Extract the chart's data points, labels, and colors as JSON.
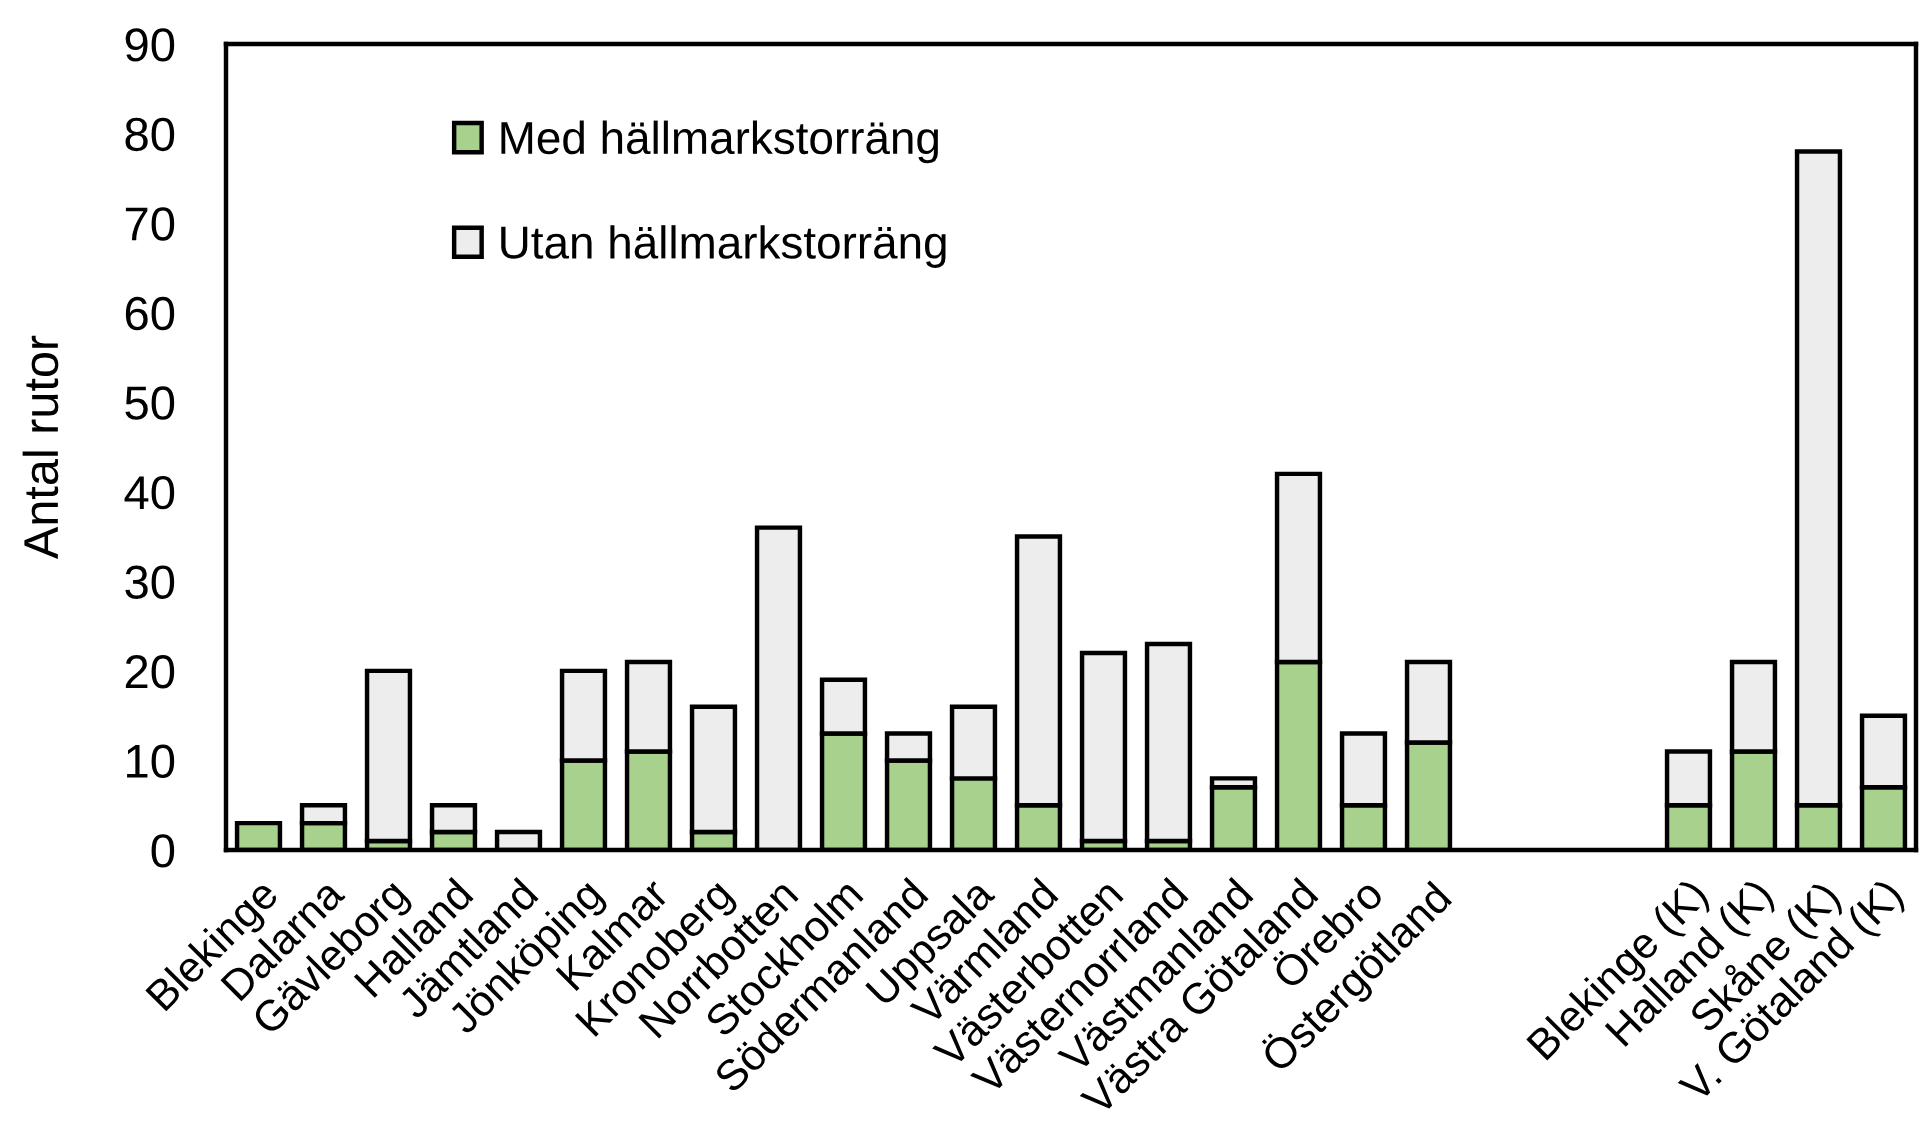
{
  "chart_data": {
    "type": "bar",
    "stacked": true,
    "ylabel": "Antal rutor",
    "categories": [
      "Blekinge",
      "Dalarna",
      "Gävleborg",
      "Halland",
      "Jämtland",
      "Jönköping",
      "Kalmar",
      "Kronoberg",
      "Norrbotten",
      "Stockholm",
      "Södermanland",
      "Uppsala",
      "Värmland",
      "Västerbotten",
      "Västernorrland",
      "Västmanland",
      "Västra Götaland",
      "Örebro",
      "Östergötland",
      null,
      null,
      null,
      "Blekinge (K)",
      "Halland (K)",
      "Skåne (K)",
      "V. Götaland (K)"
    ],
    "series": [
      {
        "name": "Med hällmarkstorräng",
        "color": "#a9d18e",
        "values": [
          3,
          3,
          1,
          2,
          0,
          10,
          11,
          2,
          0,
          13,
          10,
          8,
          5,
          1,
          1,
          7,
          21,
          5,
          12,
          null,
          null,
          null,
          5,
          11,
          5,
          7
        ]
      },
      {
        "name": "Utan hällmarkstorräng",
        "color": "#ededed",
        "values": [
          0,
          2,
          19,
          3,
          2,
          10,
          10,
          14,
          36,
          6,
          3,
          8,
          30,
          21,
          22,
          1,
          21,
          8,
          9,
          null,
          null,
          null,
          6,
          10,
          73,
          8
        ]
      }
    ],
    "ylim": [
      0,
      90
    ],
    "yticks": [
      0,
      10,
      20,
      30,
      40,
      50,
      60,
      70,
      80,
      90
    ],
    "legend": "top left",
    "grid": false
  }
}
